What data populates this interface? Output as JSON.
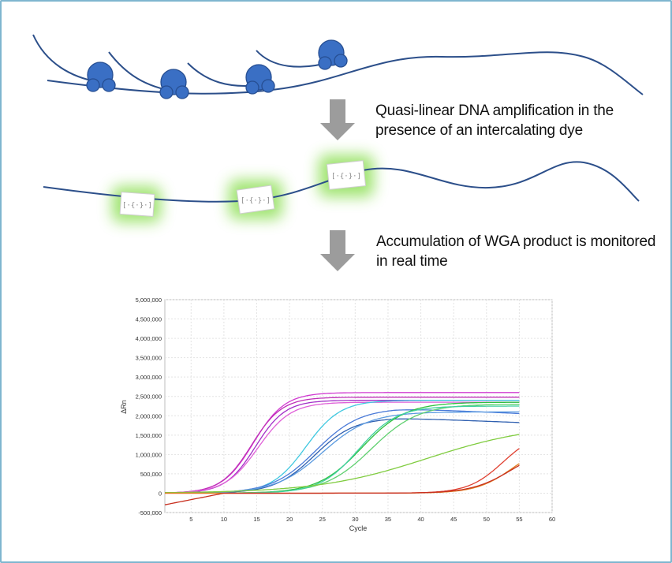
{
  "steps": {
    "step1_text": "Quasi-linear DNA amplification in the presence of an intercalating dye",
    "step2_text": "Accumulation of WGA product is monitored in real time"
  },
  "colors": {
    "dna_strand": "#2c4f8a",
    "polymerase": "#3a6fc4",
    "arrow": "#9c9c9c",
    "glow": "#9be36a",
    "frame": "#7fb6cf"
  },
  "chart_data": {
    "type": "line",
    "xlabel": "Cycle",
    "ylabel": "ΔRn",
    "xlim": [
      1,
      60
    ],
    "ylim": [
      -500000,
      5000000
    ],
    "x_ticks": [
      5,
      10,
      15,
      20,
      25,
      30,
      35,
      40,
      45,
      50,
      55,
      60
    ],
    "y_tick_labels": [
      "5,000,000",
      "4,500,000",
      "4,000,000",
      "3,500,000",
      "3,000,000",
      "2,500,000",
      "2,000,000",
      "1,500,000",
      "1,000,000",
      "500,000",
      "0",
      "-500,000"
    ],
    "y_ticks": [
      5000000,
      4500000,
      4000000,
      3500000,
      3000000,
      2500000,
      2000000,
      1500000,
      1000000,
      500000,
      0,
      -500000
    ],
    "grid": true,
    "x_end": 55,
    "series": [
      {
        "color": "#d03ad0",
        "plateau": 2600000,
        "midpoint": 14.5,
        "slope": 0.42,
        "base": 0
      },
      {
        "color": "#c02fb8",
        "plateau": 2480000,
        "midpoint": 14.2,
        "slope": 0.43,
        "base": 0
      },
      {
        "color": "#a330c8",
        "plateau": 2400000,
        "midpoint": 14.8,
        "slope": 0.44,
        "base": 0
      },
      {
        "color": "#e060d8",
        "plateau": 2350000,
        "midpoint": 15.2,
        "slope": 0.4,
        "base": 0
      },
      {
        "color": "#40c8e0",
        "plateau": 2400000,
        "midpoint": 22.5,
        "slope": 0.38,
        "base": 0
      },
      {
        "color": "#4a7ad8",
        "plateau": 2200000,
        "midpoint": 24.0,
        "slope": 0.3,
        "base": 0,
        "decline": 150000
      },
      {
        "color": "#3060b0",
        "plateau": 1950000,
        "midpoint": 23.8,
        "slope": 0.33,
        "base": 0,
        "decline": 130000
      },
      {
        "color": "#5a9ae0",
        "plateau": 2100000,
        "midpoint": 25.0,
        "slope": 0.28,
        "base": 0
      },
      {
        "color": "#30c040",
        "plateau": 2350000,
        "midpoint": 31.0,
        "slope": 0.3,
        "base": 0
      },
      {
        "color": "#60d070",
        "plateau": 2300000,
        "midpoint": 32.5,
        "slope": 0.28,
        "base": 0
      },
      {
        "color": "#40d0a0",
        "plateau": 2250000,
        "midpoint": 30.5,
        "slope": 0.34,
        "base": 0
      },
      {
        "color": "#80cc40",
        "plateau": 1800000,
        "midpoint": 41.0,
        "slope": 0.12,
        "base": 0
      },
      {
        "color": "#e04030",
        "plateau": 1600000,
        "midpoint": 52.5,
        "slope": 0.38,
        "base": 0
      },
      {
        "color": "#e08020",
        "plateau": 1300000,
        "midpoint": 54.0,
        "slope": 0.36,
        "base": 0
      },
      {
        "color": "#c83020",
        "plateau": 1200000,
        "midpoint": 53.8,
        "slope": 0.33,
        "base": 0,
        "earlyDip": true
      }
    ]
  }
}
